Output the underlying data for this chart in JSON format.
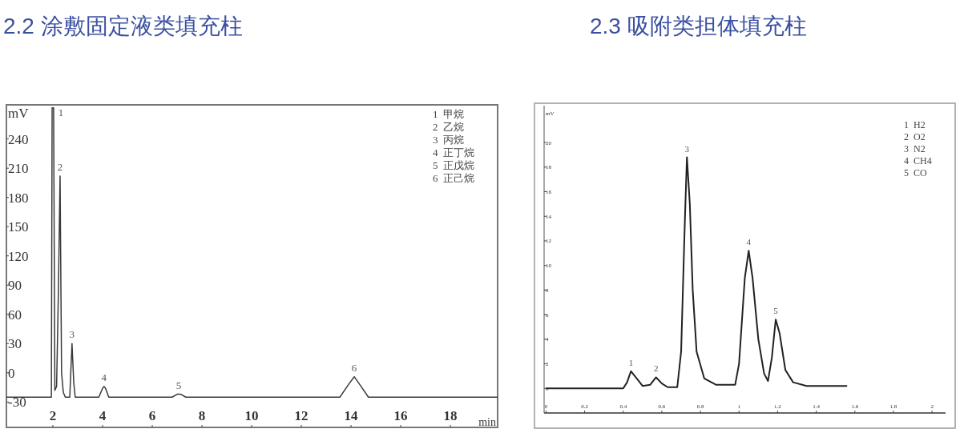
{
  "chart_data": [
    {
      "type": "line",
      "title": "2.2 涂敷固定液类填充柱",
      "xlabel": "min",
      "ylabel": "mV",
      "color": "#3a3a3a",
      "x": [
        0.13,
        1.94,
        1.97,
        2.03,
        2.08,
        2.15,
        2.22,
        2.29,
        2.35,
        2.42,
        2.5,
        2.68,
        2.72,
        2.77,
        2.84,
        2.9,
        3.85,
        4.0,
        4.06,
        4.12,
        4.25,
        6.8,
        7.0,
        7.15,
        7.35,
        13.55,
        13.9,
        14.13,
        14.35,
        14.7,
        19.9
      ],
      "values": [
        -25,
        -25,
        272,
        272,
        -18,
        -14,
        80,
        202,
        0,
        -20,
        -25,
        -25,
        0,
        30,
        -10,
        -25,
        -25,
        -16,
        -14,
        -16,
        -25,
        -25,
        -22,
        -22,
        -25,
        -25,
        -12,
        -4,
        -12,
        -25,
        -25
      ],
      "xlim": [
        0.13,
        19.9
      ],
      "ylim": [
        -56,
        275
      ],
      "xticks": [
        2,
        4,
        6,
        8,
        10,
        12,
        14,
        16,
        18
      ],
      "yticks": [
        -30,
        0,
        30,
        60,
        90,
        120,
        150,
        180,
        210,
        240
      ],
      "annotations": [
        {
          "text": "1",
          "x": 2.03,
          "y": 272
        },
        {
          "text": "2",
          "x": 2.29,
          "y": 202
        },
        {
          "text": "3",
          "x": 2.77,
          "y": 30
        },
        {
          "text": "4",
          "x": 4.06,
          "y": -14
        },
        {
          "text": "5",
          "x": 7.06,
          "y": -22
        },
        {
          "text": "6",
          "x": 14.13,
          "y": -4
        },
        "1  甲烷",
        "2  乙烷",
        "3  丙烷",
        "4  正丁烷",
        "5  正戊烷",
        "6  正己烷"
      ]
    },
    {
      "type": "line",
      "title": "2.3 吸附类担体填充柱",
      "ylabel": "mV",
      "color": "#222222",
      "x": [
        0,
        0.4,
        0.42,
        0.44,
        0.47,
        0.5,
        0.54,
        0.57,
        0.6,
        0.63,
        0.68,
        0.7,
        0.72,
        0.73,
        0.745,
        0.76,
        0.78,
        0.82,
        0.88,
        0.98,
        1.0,
        1.03,
        1.05,
        1.07,
        1.1,
        1.13,
        1.15,
        1.17,
        1.19,
        1.21,
        1.24,
        1.28,
        1.35,
        1.56
      ],
      "values": [
        0,
        0,
        0.5,
        1.4,
        0.8,
        0.2,
        0.3,
        0.9,
        0.4,
        0.1,
        0.1,
        3,
        14,
        18.8,
        15,
        8,
        3,
        0.8,
        0.3,
        0.3,
        2,
        9,
        11.2,
        9,
        4,
        1.2,
        0.6,
        2.5,
        5.6,
        4.5,
        1.5,
        0.5,
        0.2,
        0.2
      ],
      "xlim": [
        -0.01,
        2.07
      ],
      "ylim": [
        -2,
        23
      ],
      "xticks": [
        0,
        0.2,
        0.4,
        0.6,
        0.8,
        1,
        1.2,
        1.4,
        1.6,
        1.8,
        2
      ],
      "yticks": [
        0,
        2,
        4,
        6,
        8,
        10,
        12,
        14,
        16,
        18,
        20
      ],
      "annotations": [
        {
          "text": "1",
          "x": 0.44,
          "y": 1.4
        },
        {
          "text": "2",
          "x": 0.57,
          "y": 0.9
        },
        {
          "text": "3",
          "x": 0.73,
          "y": 18.8
        },
        {
          "text": "4",
          "x": 1.05,
          "y": 11.2
        },
        {
          "text": "5",
          "x": 1.19,
          "y": 5.6
        },
        "1  H2",
        "2  O2",
        "3  N2",
        "4  CH4",
        "5  CO"
      ]
    }
  ]
}
